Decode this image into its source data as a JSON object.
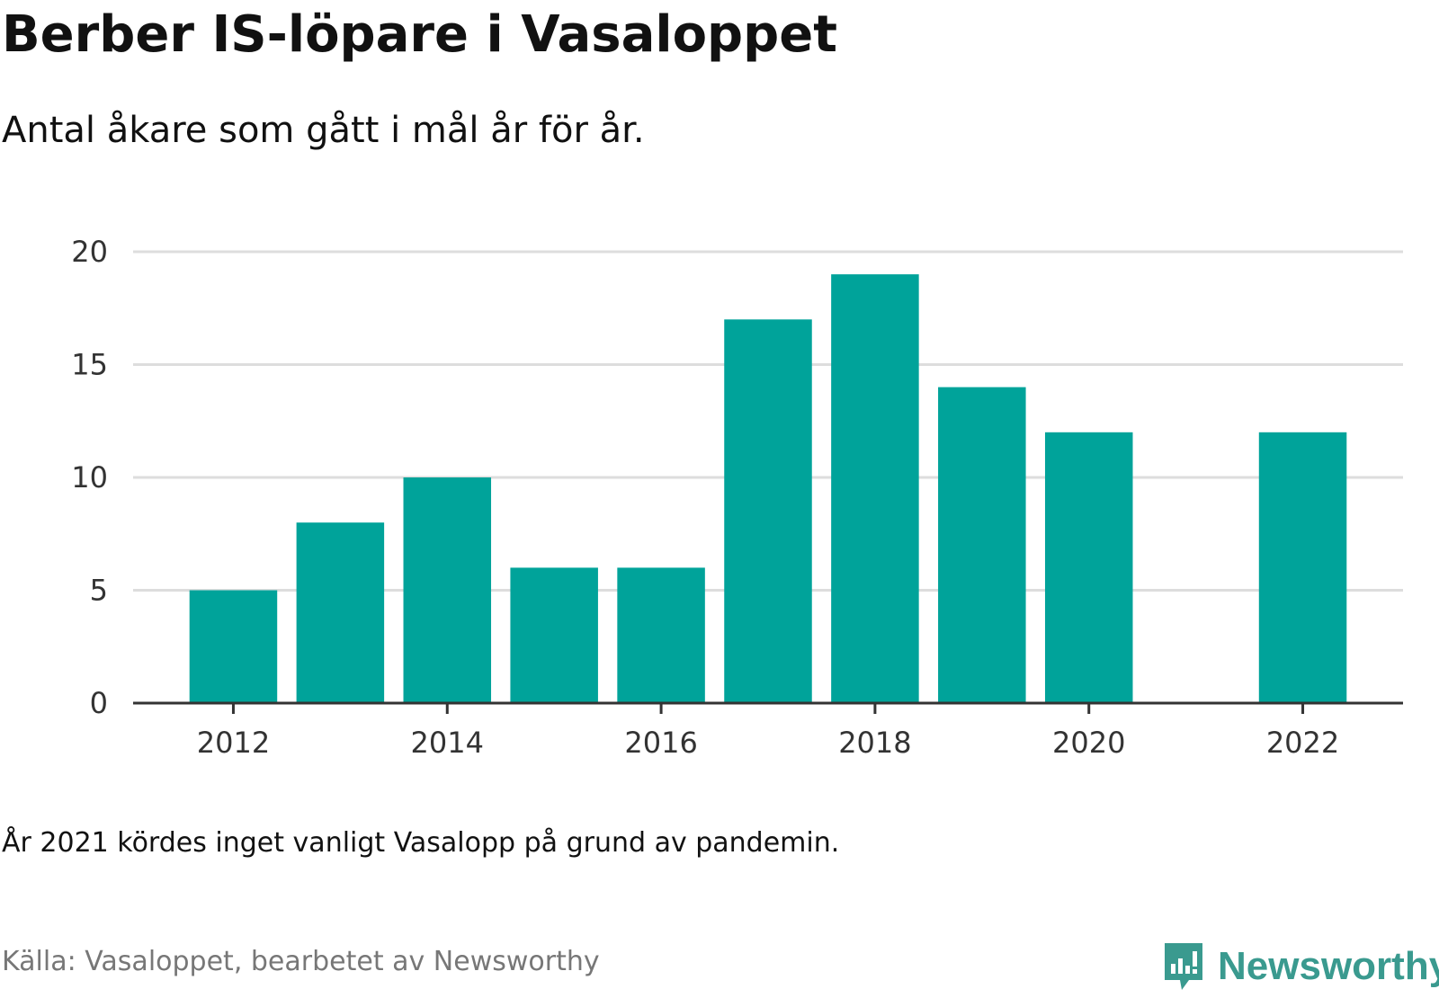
{
  "header": {
    "title": "Berber IS-löpare i Vasaloppet",
    "subtitle": "Antal åkare som gått i mål år för år."
  },
  "footer": {
    "note": "År 2021 kördes inget vanligt Vasalopp på grund av pandemin.",
    "source": "Källa: Vasaloppet, bearbetet av Newsworthy",
    "brand": "Newsworthy",
    "brand_icon": "newsworthy-logo-icon"
  },
  "colors": {
    "bar": "#00a39a",
    "grid": "#dddddd",
    "axis": "#333333",
    "brand": "#3a9a8f"
  },
  "chart_data": {
    "type": "bar",
    "title": "Berber IS-löpare i Vasaloppet",
    "subtitle": "Antal åkare som gått i mål år för år.",
    "categories": [
      2012,
      2013,
      2014,
      2015,
      2016,
      2017,
      2018,
      2019,
      2020,
      2021,
      2022
    ],
    "values": [
      5,
      8,
      10,
      6,
      6,
      17,
      19,
      14,
      12,
      null,
      12
    ],
    "xticks": [
      2012,
      2014,
      2016,
      2018,
      2020,
      2022
    ],
    "yticks": [
      0,
      5,
      10,
      15,
      20
    ],
    "ylim": [
      0,
      20
    ],
    "xlabel": "",
    "ylabel": "",
    "grid": true,
    "legend": false
  }
}
